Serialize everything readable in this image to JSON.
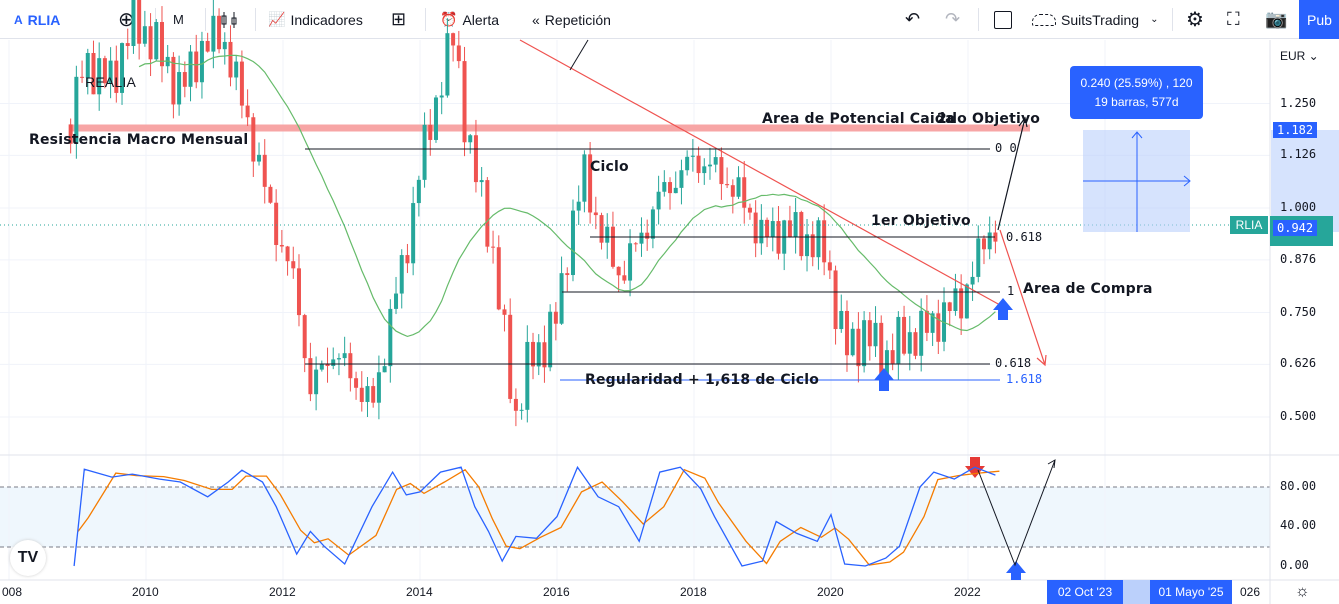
{
  "toolbar": {
    "symbol": "RLIA",
    "interval": "M",
    "indicators": "Indicadores",
    "alert": "Alerta",
    "replay": "Repetición",
    "layout_name": "SuitsTrading",
    "publish": "Pub"
  },
  "colors": {
    "up": "#26a69a",
    "down": "#ef5350",
    "accent": "#2962ff",
    "ma": "#66bb6a",
    "stoch_k": "#2962ff",
    "stoch_d": "#f57c00",
    "resistance": "#f7a5a5"
  },
  "chart_data": {
    "type": "candlestick",
    "symbol_label": "REALIA",
    "currency": "EUR",
    "price_ticks": [
      "1.250",
      "1.126",
      "1.000",
      "0.876",
      "0.750",
      "0.626",
      "0.500"
    ],
    "x_ticks": [
      "008",
      "2010",
      "2012",
      "2014",
      "2016",
      "2018",
      "2020",
      "2022",
      "026"
    ],
    "price_path": {
      "t": [
        2008.9,
        2009.1,
        2009.5,
        2009.8,
        2010.1,
        2010.5,
        2010.8,
        2011.1,
        2011.5,
        2011.8,
        2012.2,
        2012.4,
        2012.7,
        2013.0,
        2013.3,
        2013.6,
        2013.8,
        2014.0,
        2014.3,
        2014.5,
        2014.7,
        2015.0,
        2015.2,
        2015.4,
        2015.6,
        2015.8,
        2016.0,
        2016.2,
        2016.4,
        2016.6,
        2016.9,
        2017.2,
        2017.5,
        2017.8,
        2018.0,
        2018.4,
        2018.7,
        2019.0,
        2019.3,
        2019.6,
        2019.9,
        2020.2,
        2020.5,
        2020.8,
        2021.0,
        2021.3,
        2021.6,
        2021.9,
        2022.1,
        2022.3,
        2022.45
      ],
      "close": [
        1.2,
        1.35,
        1.3,
        1.45,
        1.4,
        1.28,
        1.38,
        1.42,
        1.2,
        1.0,
        0.8,
        0.56,
        0.66,
        0.6,
        0.52,
        0.76,
        0.9,
        1.1,
        1.3,
        1.42,
        1.15,
        0.96,
        0.72,
        0.5,
        0.64,
        0.67,
        0.74,
        0.95,
        1.08,
        0.96,
        0.84,
        0.92,
        1.03,
        1.08,
        1.12,
        1.08,
        1.02,
        0.93,
        0.95,
        0.93,
        0.9,
        0.66,
        0.7,
        0.64,
        0.68,
        0.7,
        0.74,
        0.78,
        0.86,
        0.95,
        0.942
      ]
    },
    "last_price": "0.942",
    "last_price_tag": "RLIA",
    "measure_top": "1.182",
    "stochastic": {
      "levels": [
        80,
        20
      ],
      "ticks": [
        "80.00",
        "40.00",
        "0.00"
      ],
      "t": [
        2008.95,
        2009.1,
        2009.5,
        2009.8,
        2010.2,
        2010.5,
        2010.9,
        2011.2,
        2011.4,
        2011.7,
        2011.9,
        2012.2,
        2012.4,
        2012.6,
        2012.9,
        2013.3,
        2013.6,
        2013.8,
        2014.0,
        2014.3,
        2014.6,
        2014.8,
        2015.0,
        2015.2,
        2015.4,
        2015.7,
        2016.0,
        2016.3,
        2016.6,
        2016.9,
        2017.2,
        2017.5,
        2017.8,
        2018.1,
        2018.3,
        2018.7,
        2019.0,
        2019.2,
        2019.5,
        2019.8,
        2020.0,
        2020.2,
        2020.5,
        2020.8,
        2021.0,
        2021.3,
        2021.5,
        2021.8,
        2022.1,
        2022.4
      ],
      "k": [
        0,
        98,
        90,
        93,
        88,
        85,
        70,
        85,
        97,
        85,
        60,
        12,
        35,
        20,
        2,
        60,
        95,
        72,
        75,
        95,
        100,
        60,
        35,
        5,
        30,
        28,
        50,
        100,
        70,
        60,
        25,
        95,
        100,
        78,
        50,
        0,
        5,
        45,
        33,
        25,
        52,
        2,
        0,
        8,
        20,
        80,
        95,
        88,
        100,
        92
      ]
    },
    "annotations": {
      "resistance": "Resistencia Macro Mensual",
      "potential_drop": "Area de Potencial Caida",
      "target2": "2do Objetivo",
      "cycle": "Ciclo",
      "target1": "1er Objetivo",
      "buy_area": "Area de Compra",
      "regularity": "Regularidad + 1,618 de Ciclo",
      "fib_0": "0 0",
      "fib_0618_top": "0.618",
      "fib_1": "1",
      "fib_0618_bottom": "0.618",
      "fib_1618": "1.618"
    },
    "measure": {
      "line1": "0.240 (25.59%) , 120",
      "line2": "19 barras, 577d"
    },
    "time_badges": [
      "02 Oct '23",
      "01 Mayo '25"
    ]
  }
}
